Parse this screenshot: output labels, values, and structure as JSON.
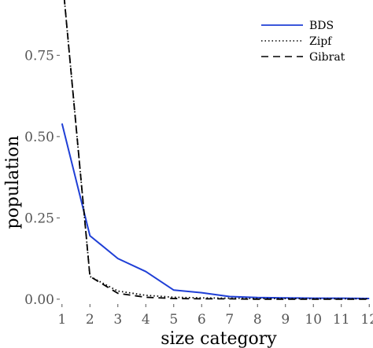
{
  "chart_data": {
    "type": "line",
    "title": "",
    "xlabel": "size category",
    "ylabel": "population",
    "x": [
      1,
      2,
      3,
      4,
      5,
      6,
      7,
      8,
      9,
      10,
      11,
      12
    ],
    "xticks": [
      "1",
      "2",
      "3",
      "4",
      "5",
      "6",
      "7",
      "8",
      "9",
      "10",
      "11",
      "12"
    ],
    "yticks": [
      "0.00",
      "0.25",
      "0.50",
      "0.75"
    ],
    "ytick_values": [
      0,
      0.25,
      0.5,
      0.75
    ],
    "xlim": [
      0.95,
      12.05
    ],
    "ylim": [
      -0.01,
      0.92
    ],
    "grid": false,
    "legend_position": "top-right",
    "series": [
      {
        "name": "BDS",
        "style": "solid",
        "color": "#1f3fd6",
        "values": [
          0.54,
          0.195,
          0.125,
          0.085,
          0.028,
          0.02,
          0.008,
          0.005,
          0.004,
          0.003,
          0.003,
          0.002
        ]
      },
      {
        "name": "Zipf",
        "style": "dotted",
        "color": "#000000",
        "values": [
          1.0,
          0.07,
          0.025,
          0.012,
          0.006,
          0.004,
          0.003,
          0.002,
          0.002,
          0.001,
          0.001,
          0.001
        ]
      },
      {
        "name": "Gibrat",
        "style": "dashed",
        "color": "#000000",
        "values": [
          1.0,
          0.07,
          0.018,
          0.006,
          0.002,
          0.001,
          0.001,
          0.0,
          0.0,
          0.0,
          0.0,
          0.0
        ]
      }
    ]
  }
}
